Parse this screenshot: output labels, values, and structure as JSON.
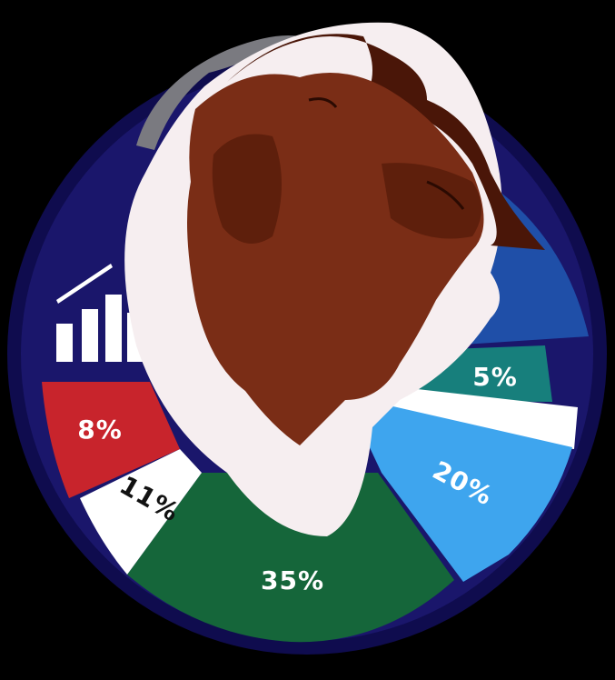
{
  "chart_data": {
    "type": "pie",
    "values": [
      8,
      11,
      35,
      20,
      5
    ],
    "labels": [
      "8%",
      "11%",
      "35%",
      "20%",
      "5%"
    ],
    "colors": {
      "red": "#c8242c",
      "white": "#ffffff",
      "green": "#15663a",
      "light_blue": "#3ea5ee",
      "teal": "#177f7c",
      "blue": "#1f4fa8",
      "navy": "#1a166b",
      "dark_navy": "#0f0c4e"
    }
  },
  "logo": {
    "subject": "goat-head",
    "icon": "bar-chart-icon",
    "colors": {
      "fur_brown": "#7a2d16",
      "fur_dark": "#4a1608",
      "fur_white": "#f6eef0",
      "horn": "#7a7a80"
    }
  }
}
